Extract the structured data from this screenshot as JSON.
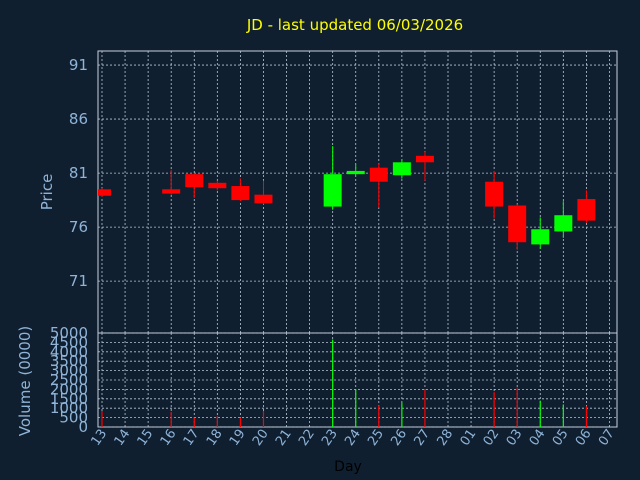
{
  "chart_data": [
    {
      "type": "candlestick",
      "title": "JD - last updated 06/03/2026",
      "ylabel": "Price",
      "ylim": [
        66.2,
        92.3
      ],
      "yticks": [
        71,
        76,
        81,
        86,
        91
      ],
      "grid": true,
      "x": [
        "13",
        "14",
        "15",
        "16",
        "17",
        "18",
        "19",
        "20",
        "21",
        "22",
        "23",
        "24",
        "25",
        "26",
        "27",
        "28",
        "01",
        "02",
        "03",
        "04",
        "05",
        "06",
        "07"
      ],
      "candles": [
        {
          "day": "13",
          "open": 79.5,
          "close": 78.9,
          "high": 79.6,
          "low": 78.8,
          "color": "red"
        },
        {
          "day": "16",
          "open": 79.5,
          "close": 79.1,
          "high": 81.3,
          "low": 79.0,
          "color": "red"
        },
        {
          "day": "17",
          "open": 80.9,
          "close": 79.7,
          "high": 81.0,
          "low": 78.7,
          "color": "red"
        },
        {
          "day": "18",
          "open": 80.1,
          "close": 79.6,
          "high": 80.3,
          "low": 79.4,
          "color": "red"
        },
        {
          "day": "19",
          "open": 79.8,
          "close": 78.5,
          "high": 80.5,
          "low": 78.4,
          "color": "red"
        },
        {
          "day": "20",
          "open": 79.0,
          "close": 78.2,
          "high": 80.3,
          "low": 78.1,
          "color": "red"
        },
        {
          "day": "23",
          "open": 77.9,
          "close": 80.9,
          "high": 83.5,
          "low": 77.6,
          "color": "green"
        },
        {
          "day": "24",
          "open": 80.9,
          "close": 81.2,
          "high": 81.8,
          "low": 80.8,
          "color": "green"
        },
        {
          "day": "25",
          "open": 81.5,
          "close": 80.2,
          "high": 81.9,
          "low": 77.8,
          "color": "red"
        },
        {
          "day": "26",
          "open": 80.8,
          "close": 82.0,
          "high": 82.3,
          "low": 80.5,
          "color": "green"
        },
        {
          "day": "27",
          "open": 82.6,
          "close": 82.0,
          "high": 83.0,
          "low": 80.3,
          "color": "red"
        },
        {
          "day": "02",
          "open": 80.2,
          "close": 77.9,
          "high": 81.2,
          "low": 76.8,
          "color": "red"
        },
        {
          "day": "03",
          "open": 78.0,
          "close": 74.6,
          "high": 78.1,
          "low": 73.9,
          "color": "red"
        },
        {
          "day": "04",
          "open": 74.4,
          "close": 75.8,
          "high": 76.9,
          "low": 74.0,
          "color": "green"
        },
        {
          "day": "05",
          "open": 75.6,
          "close": 77.1,
          "high": 78.4,
          "low": 75.0,
          "color": "green"
        },
        {
          "day": "06",
          "open": 78.6,
          "close": 76.6,
          "high": 79.4,
          "low": 76.4,
          "color": "red"
        }
      ]
    },
    {
      "type": "bar",
      "ylabel": "Volume (0000)",
      "xlabel": "Day",
      "ylim": [
        0,
        5000
      ],
      "yticks": [
        0,
        500,
        1000,
        1500,
        2000,
        2500,
        3000,
        3500,
        4000,
        4500,
        5000
      ],
      "grid": true,
      "x": [
        "13",
        "14",
        "15",
        "16",
        "17",
        "18",
        "19",
        "20",
        "21",
        "22",
        "23",
        "24",
        "25",
        "26",
        "27",
        "28",
        "01",
        "02",
        "03",
        "04",
        "05",
        "06",
        "07"
      ],
      "volumes": [
        {
          "day": "13",
          "value": 850,
          "color": "red"
        },
        {
          "day": "16",
          "value": 800,
          "color": "red"
        },
        {
          "day": "17",
          "value": 500,
          "color": "red"
        },
        {
          "day": "18",
          "value": 600,
          "color": "red"
        },
        {
          "day": "19",
          "value": 500,
          "color": "red"
        },
        {
          "day": "20",
          "value": 850,
          "color": "red"
        },
        {
          "day": "23",
          "value": 4650,
          "color": "green"
        },
        {
          "day": "24",
          "value": 2000,
          "color": "green"
        },
        {
          "day": "25",
          "value": 1150,
          "color": "red"
        },
        {
          "day": "26",
          "value": 1300,
          "color": "green"
        },
        {
          "day": "27",
          "value": 2000,
          "color": "red"
        },
        {
          "day": "02",
          "value": 1850,
          "color": "red"
        },
        {
          "day": "03",
          "value": 2100,
          "color": "red"
        },
        {
          "day": "04",
          "value": 1400,
          "color": "green"
        },
        {
          "day": "05",
          "value": 1200,
          "color": "green"
        },
        {
          "day": "06",
          "value": 1100,
          "color": "red"
        }
      ]
    }
  ],
  "colors": {
    "background": "#0f1f30",
    "title": "#ffff00",
    "text": "#8fb4d8",
    "grid": "#b8c6d4",
    "up": "#00ff00",
    "down": "#ff0000",
    "border": "#c8d2dc"
  }
}
